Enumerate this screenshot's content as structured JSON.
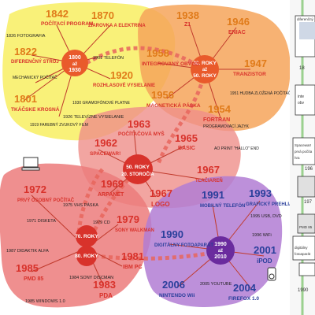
{
  "hubs": {
    "h1": {
      "line1": "1800",
      "line2": "až",
      "line3": "1930"
    },
    "h2": {
      "line1": "30. ROKY",
      "line2": "až",
      "line3": "50. ROKY"
    },
    "h3": {
      "line1": "50. ROKY",
      "line2": "20. STOROČIA"
    },
    "h4": {
      "line1": "70. ROKY"
    },
    "h5": {
      "line1": "80. ROKY"
    },
    "h6": {
      "line1": "1990",
      "line2": "až",
      "line3": "2010"
    }
  },
  "events": {
    "e1842": {
      "year": "1842",
      "title": "POČÍTACÍ PROGRAM"
    },
    "e1870": {
      "year": "1870",
      "title": "ŽIAROVKA A ELEKTRINA"
    },
    "e1822": {
      "year": "1822",
      "title": "DIFERENČNÝ STROJ"
    },
    "e1801": {
      "year": "1801",
      "title": "TKÁČSKE KROSNÁ"
    },
    "e1920": {
      "year": "1920",
      "title": "ROZHLASOVÉ VYSIELANIE"
    },
    "e1938": {
      "year": "1938",
      "title": "Z1"
    },
    "e1946": {
      "year": "1946",
      "title": "ENIAC"
    },
    "e1958": {
      "year": "1958",
      "title": "INTEGROVANÝ OBVOD"
    },
    "e1947": {
      "year": "1947",
      "title": "TRANZISTOR"
    },
    "e1956": {
      "year": "1956",
      "title": "MAGNETICKÁ PÁSKA"
    },
    "e1954": {
      "year": "1954",
      "title": "FORTRAN"
    },
    "e1963": {
      "year": "1963",
      "title": "POČÍTAČOVÁ MYŠ"
    },
    "e1962": {
      "year": "1962",
      "title": "SPACEWAR!"
    },
    "e1965": {
      "year": "1965",
      "title": "BASIC"
    },
    "e1969": {
      "year": "1969",
      "title": "ARPANET"
    },
    "e1967a": {
      "year": "1967",
      "title": "LOGO"
    },
    "e1967b": {
      "year": "1967",
      "title": "TLAČIAREŇ"
    },
    "e1972": {
      "year": "1972",
      "title": "PRVÝ OSOBNÝ POČÍTAČ"
    },
    "e1979": {
      "year": "1979",
      "title": "SONY WALKMAN"
    },
    "e1981": {
      "year": "1981",
      "title": "IBM PC"
    },
    "e1985": {
      "year": "1985",
      "title": "PMD 85"
    },
    "e1983": {
      "year": "1983",
      "title": "PDA"
    },
    "e1991": {
      "year": "1991",
      "title": "MOBILNÝ TELEFÓN"
    },
    "e1993": {
      "year": "1993",
      "title": "GRAFICKÝ PREHLIADAČ"
    },
    "e1990": {
      "year": "1990",
      "title": "DIGITÁLNY FOTOAPARÁT"
    },
    "e2001": {
      "year": "2001",
      "title": "iPOD"
    },
    "e2006": {
      "year": "2006",
      "title": "NINTENDO Wii"
    },
    "e2004": {
      "year": "2004",
      "title": "FIREFOX 1.0"
    }
  },
  "small_labels": {
    "s1": "1826 FOTOGRAFIA",
    "s2": "1901 TELEFÓN",
    "s3": "MECHANICKÝ POČÍTAČ",
    "s4": "1926 TELEVÍZNE VYSIELANIE",
    "s5": "1919 FAREBNÝ ZVUKOVÝ FILM",
    "s6": "1930 GRAMOFÓNOVÉ PLATNE",
    "s7": "1951 HUDBA ZLOŽENÁ POČÍTAČOM",
    "s8": "PROGRAMOVACÍ JAZYK",
    "s9": "AO PRINT \"HALLO\" END",
    "s10": "1975 VHS PÁSKA",
    "s11": "1971 DISKETA",
    "s12": "1987 DIDAKTIK ALFA",
    "s13": "1984 SONY DISCMAN",
    "s14": "1985 WINDOWS 1.0",
    "s15": "1979 CD",
    "s16": "1995 USB, DVD",
    "s17": "1996 WiFi",
    "s18": "2005 YOUTUBE"
  },
  "side_panel": {
    "t1": "diferenčný",
    "t2": "18",
    "t3": "inte",
    "t4": "obv",
    "t5": "Spacewar!",
    "t6": "prvá počíta",
    "t7": "hra",
    "t8": "196",
    "t9": "197",
    "t10": "PMD 85",
    "t11": "digitálny",
    "t12": "fotoaparát",
    "t13": "1990"
  }
}
